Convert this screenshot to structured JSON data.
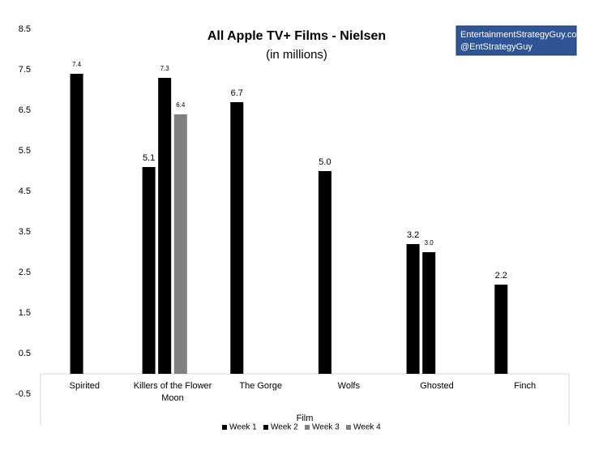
{
  "chart_data": {
    "type": "bar",
    "title": "All Apple TV+ Films - Nielsen",
    "subtitle": "(in millions)",
    "annotation": [
      "EntertainmentStrategyGuy.com",
      "@EntStrategyGuy"
    ],
    "x_label": "Film",
    "categories": [
      "Spirited",
      "Killers of the Flower Moon",
      "The Gorge",
      "Wolfs",
      "Ghosted",
      "Finch"
    ],
    "series": [
      {
        "name": "Week 1",
        "color": "#000000",
        "values": [
          null,
          5.1,
          6.7,
          5.0,
          3.2,
          2.2
        ],
        "value_labels": [
          null,
          "5.1",
          "6.7",
          "5.0",
          "3.2",
          "2.2"
        ]
      },
      {
        "name": "Week 2",
        "color": "#000000",
        "values": [
          7.4,
          7.3,
          null,
          null,
          3.0,
          null
        ],
        "value_labels": [
          "7.4",
          "7.3",
          null,
          null,
          "3.0",
          null
        ]
      },
      {
        "name": "Week 3",
        "color": "#808080",
        "values": [
          null,
          6.4,
          null,
          null,
          null,
          null
        ],
        "value_labels": [
          null,
          "6.4",
          null,
          null,
          null,
          null
        ]
      },
      {
        "name": "Week 4",
        "color": "#7f7f7f",
        "values": [
          null,
          null,
          null,
          null,
          null,
          null
        ]
      }
    ],
    "ylim": [
      -0.5,
      8.5
    ],
    "yticks": [
      -0.5,
      0.5,
      1.5,
      2.5,
      3.5,
      4.5,
      5.5,
      6.5,
      7.5,
      8.5
    ],
    "grid": false,
    "legend": "bottom"
  }
}
